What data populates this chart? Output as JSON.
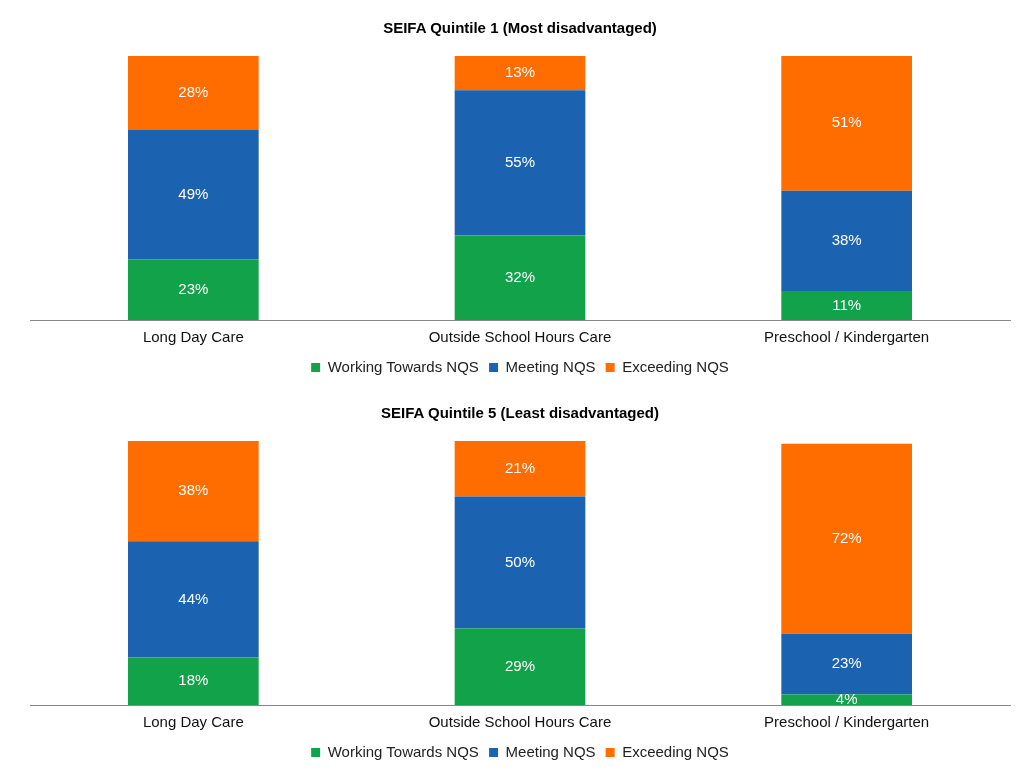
{
  "chart_data": [
    {
      "type": "bar",
      "title": "SEIFA Quintile 1 (Most disadvantaged)",
      "categories": [
        "Long Day Care",
        "Outside School Hours Care",
        "Preschool / Kindergarten"
      ],
      "stacked": true,
      "tick_labels": "x",
      "legend": "bottom",
      "series": [
        {
          "name": "Working Towards NQS",
          "color": "#12a34a",
          "values": [
            23,
            32,
            11
          ],
          "value_labels": [
            "23%",
            "32%",
            "11%"
          ]
        },
        {
          "name": "Meeting NQS",
          "color": "#1b62b0",
          "values": [
            49,
            55,
            38
          ],
          "value_labels": [
            "49%",
            "55%",
            "38%"
          ]
        },
        {
          "name": "Exceeding NQS",
          "color": "#ff6c00",
          "values": [
            28,
            13,
            51
          ],
          "value_labels": [
            "28%",
            "13%",
            "51%"
          ]
        }
      ]
    },
    {
      "type": "bar",
      "title": "SEIFA Quintile 5 (Least disadvantaged)",
      "categories": [
        "Long Day Care",
        "Outside School Hours Care",
        "Preschool / Kindergarten"
      ],
      "stacked": true,
      "tick_labels": "x",
      "legend": "bottom",
      "series": [
        {
          "name": "Working Towards NQS",
          "color": "#12a34a",
          "values": [
            18,
            29,
            4
          ],
          "value_labels": [
            "18%",
            "29%",
            "4%"
          ]
        },
        {
          "name": "Meeting NQS",
          "color": "#1b62b0",
          "values": [
            44,
            50,
            23
          ],
          "value_labels": [
            "44%",
            "50%",
            "23%"
          ]
        },
        {
          "name": "Exceeding NQS",
          "color": "#ff6c00",
          "values": [
            38,
            21,
            72
          ],
          "value_labels": [
            "38%",
            "21%",
            "72%"
          ]
        }
      ]
    }
  ]
}
